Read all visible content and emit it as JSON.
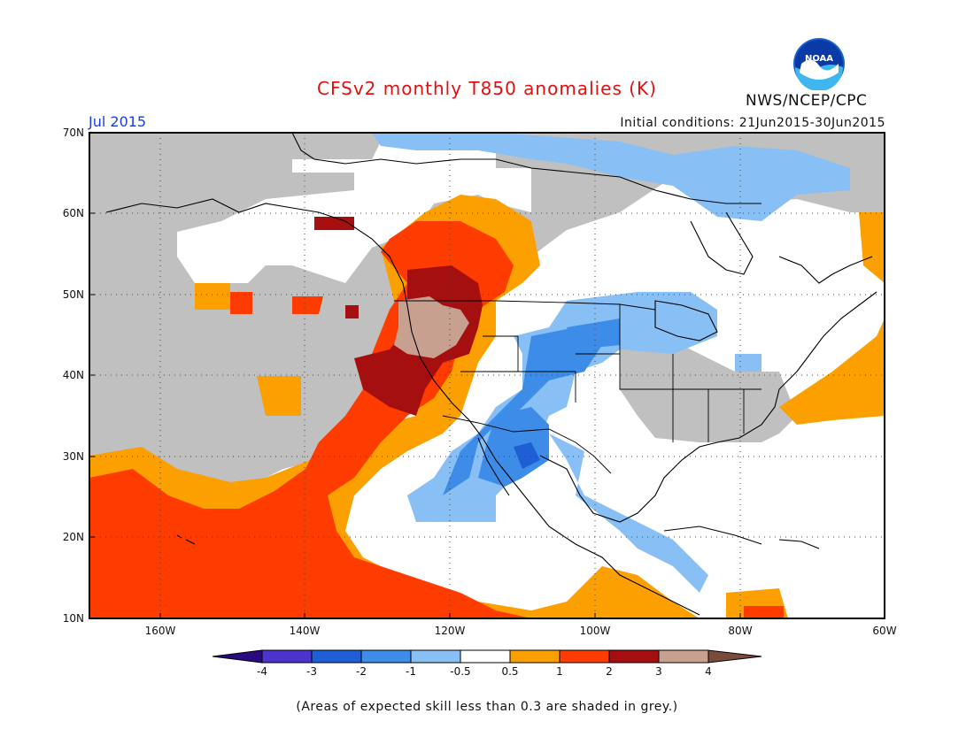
{
  "header": {
    "title": "CFSv2 monthly T850 anomalies (K)",
    "period": "Jul 2015",
    "initial_conditions": "Initial conditions: 21Jun2015-30Jun2015",
    "organization": "NWS/NCEP/CPC",
    "logo_text": "NOAA"
  },
  "map": {
    "lat_labels": [
      "70N",
      "60N",
      "50N",
      "40N",
      "30N",
      "20N",
      "10N"
    ],
    "lon_labels": [
      "160W",
      "140W",
      "120W",
      "100W",
      "80W",
      "60W"
    ]
  },
  "legend": {
    "tick_labels": [
      "-4",
      "-3",
      "-2",
      "-1",
      "-0.5",
      "0.5",
      "1",
      "2",
      "3",
      "4"
    ],
    "colors": {
      "below_-4": "#2a0a80",
      "-4_to_-3": "#4b33cc",
      "-3_to_-2": "#1f5fd6",
      "-2_to_-1": "#3d8ce8",
      "-1_to_-0.5": "#88bff5",
      "-0.5_to_0.5": "#ffffff",
      "0.5_to_1": "#fba000",
      "1_to_2": "#fe3c00",
      "2_to_3": "#a50f0f",
      "3_to_4": "#c8a090",
      "above_4": "#7a4a3a"
    },
    "skill_mask_color": "#c0c0c0"
  },
  "footnote": "(Areas of expected skill less than 0.3 are shaded in grey.)"
}
